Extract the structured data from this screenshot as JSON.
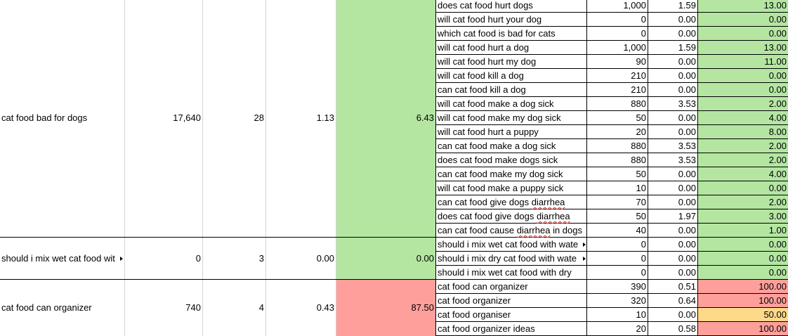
{
  "groups": [
    {
      "keyword": "cat food bad for dogs",
      "volume": "17,640",
      "count": "28",
      "avg": "1.13",
      "score": "6.43",
      "score_color": "green",
      "rows_start": 0,
      "rows_end": 17
    },
    {
      "keyword": "should i mix wet cat food wit",
      "volume": "0",
      "count": "3",
      "avg": "0.00",
      "score": "0.00",
      "score_color": "green",
      "rows_start": 17,
      "rows_end": 20
    },
    {
      "keyword": "cat food can organizer",
      "volume": "740",
      "count": "4",
      "avg": "0.43",
      "score": "87.50",
      "score_color": "red",
      "rows_start": 20,
      "rows_end": 24
    }
  ],
  "rows": [
    {
      "kw": "does cat food hurt dogs",
      "vol": "1,000",
      "cpc": "1.59",
      "diff": "13.00",
      "color": "green"
    },
    {
      "kw": "will cat food hurt your dog",
      "vol": "0",
      "cpc": "0.00",
      "diff": "0.00",
      "color": "green"
    },
    {
      "kw": "which cat food is bad for cats",
      "vol": "0",
      "cpc": "0.00",
      "diff": "0.00",
      "color": "green"
    },
    {
      "kw": "will cat food hurt a dog",
      "vol": "1,000",
      "cpc": "1.59",
      "diff": "13.00",
      "color": "green"
    },
    {
      "kw": "will cat food hurt my dog",
      "vol": "90",
      "cpc": "0.00",
      "diff": "11.00",
      "color": "green"
    },
    {
      "kw": "will cat food kill a dog",
      "vol": "210",
      "cpc": "0.00",
      "diff": "0.00",
      "color": "green"
    },
    {
      "kw": "can cat food kill a dog",
      "vol": "210",
      "cpc": "0.00",
      "diff": "0.00",
      "color": "green"
    },
    {
      "kw": "will cat food make a dog sick",
      "vol": "880",
      "cpc": "3.53",
      "diff": "2.00",
      "color": "green"
    },
    {
      "kw": "will cat food make my dog sick",
      "vol": "50",
      "cpc": "0.00",
      "diff": "4.00",
      "color": "green"
    },
    {
      "kw": "will cat food hurt a puppy",
      "vol": "20",
      "cpc": "0.00",
      "diff": "8.00",
      "color": "green"
    },
    {
      "kw": "can cat food make a dog sick",
      "vol": "880",
      "cpc": "3.53",
      "diff": "2.00",
      "color": "green"
    },
    {
      "kw": "does cat food make dogs sick",
      "vol": "880",
      "cpc": "3.53",
      "diff": "2.00",
      "color": "green"
    },
    {
      "kw": "can cat food make my dog sick",
      "vol": "50",
      "cpc": "0.00",
      "diff": "4.00",
      "color": "green"
    },
    {
      "kw": "will cat food make a puppy sick",
      "vol": "10",
      "cpc": "0.00",
      "diff": "0.00",
      "color": "green"
    },
    {
      "kw": "can cat food give dogs diarrhea",
      "vol": "70",
      "cpc": "0.00",
      "diff": "2.00",
      "color": "green",
      "spell": "diarrhea"
    },
    {
      "kw": "does cat food give dogs diarrhea",
      "vol": "50",
      "cpc": "1.97",
      "diff": "3.00",
      "color": "green",
      "spell": "diarrhea"
    },
    {
      "kw": "can cat food cause diarrhea in dogs",
      "vol": "40",
      "cpc": "0.00",
      "diff": "1.00",
      "color": "green",
      "spell": "diarrhea"
    },
    {
      "kw": "should i mix wet cat food with wate",
      "vol": "0",
      "cpc": "0.00",
      "diff": "0.00",
      "color": "green",
      "clipped": true
    },
    {
      "kw": "should i mix dry cat food with wate",
      "vol": "0",
      "cpc": "0.00",
      "diff": "0.00",
      "color": "green",
      "clipped": true
    },
    {
      "kw": "should i mix wet cat food with dry",
      "vol": "0",
      "cpc": "0.00",
      "diff": "0.00",
      "color": "green"
    },
    {
      "kw": "cat food can organizer",
      "vol": "390",
      "cpc": "0.51",
      "diff": "100.00",
      "color": "red"
    },
    {
      "kw": "cat food organizer",
      "vol": "320",
      "cpc": "0.64",
      "diff": "100.00",
      "color": "red"
    },
    {
      "kw": "cat food organiser",
      "vol": "10",
      "cpc": "0.00",
      "diff": "50.00",
      "color": "amber"
    },
    {
      "kw": "cat food organizer ideas",
      "vol": "20",
      "cpc": "0.58",
      "diff": "100.00",
      "color": "red"
    }
  ],
  "colors": {
    "green": "#b4e6a2",
    "red": "#ff9f9b",
    "amber": "#ffd98a"
  }
}
